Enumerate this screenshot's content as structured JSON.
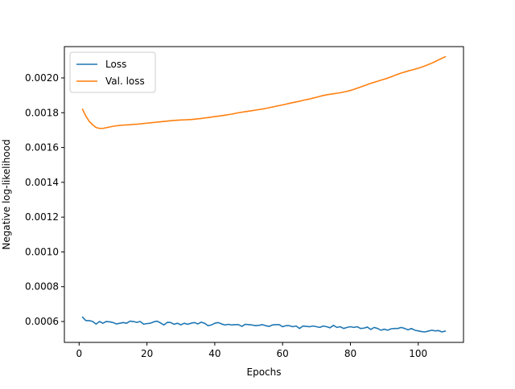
{
  "chart_data": {
    "type": "line",
    "title": "",
    "xlabel": "Epochs",
    "ylabel": "Negative log-likelihood",
    "xlim": [
      -4.35,
      113.35
    ],
    "ylim": [
      0.00048,
      0.00218
    ],
    "xticks": [
      0,
      20,
      40,
      60,
      80,
      100
    ],
    "yticks": [
      0.0006,
      0.0008,
      0.001,
      0.0012,
      0.0014,
      0.0016,
      0.0018,
      0.002
    ],
    "ytick_labels": [
      "0.0006",
      "0.0008",
      "0.0010",
      "0.0012",
      "0.0014",
      "0.0016",
      "0.0018",
      "0.0020"
    ],
    "grid": false,
    "legend_position": "upper-left",
    "series": [
      {
        "name": "Loss",
        "color": "#1f77b4",
        "x": [
          1,
          2,
          3,
          4,
          5,
          6,
          7,
          8,
          9,
          10,
          11,
          12,
          13,
          14,
          15,
          16,
          17,
          18,
          19,
          20,
          21,
          22,
          23,
          24,
          25,
          26,
          27,
          28,
          29,
          30,
          31,
          32,
          33,
          34,
          35,
          36,
          37,
          38,
          39,
          40,
          41,
          42,
          43,
          44,
          45,
          46,
          47,
          48,
          49,
          50,
          51,
          52,
          53,
          54,
          55,
          56,
          57,
          58,
          59,
          60,
          61,
          62,
          63,
          64,
          65,
          66,
          67,
          68,
          69,
          70,
          71,
          72,
          73,
          74,
          75,
          76,
          77,
          78,
          79,
          80,
          81,
          82,
          83,
          84,
          85,
          86,
          87,
          88,
          89,
          90,
          91,
          92,
          93,
          94,
          95,
          96,
          97,
          98,
          99,
          100,
          101,
          102,
          103,
          104,
          105,
          106,
          107,
          108
        ],
        "y": [
          0.000625,
          0.000605,
          0.000605,
          0.0006,
          0.000585,
          0.0006,
          0.00059,
          0.0006,
          0.000598,
          0.000594,
          0.000586,
          0.00059,
          0.000594,
          0.00059,
          0.000602,
          0.0006,
          0.000595,
          0.0006,
          0.000585,
          0.000588,
          0.00059,
          0.000598,
          0.000602,
          0.000592,
          0.00058,
          0.000595,
          0.000594,
          0.000584,
          0.00059,
          0.000581,
          0.00059,
          0.000584,
          0.00059,
          0.000594,
          0.000586,
          0.000596,
          0.00059,
          0.000576,
          0.00058,
          0.00059,
          0.000594,
          0.000586,
          0.00058,
          0.000584,
          0.00058,
          0.000582,
          0.000582,
          0.000572,
          0.000584,
          0.000582,
          0.00058,
          0.000576,
          0.000578,
          0.000582,
          0.000576,
          0.000572,
          0.00058,
          0.000582,
          0.000582,
          0.00057,
          0.000576,
          0.000576,
          0.00057,
          0.000574,
          0.00056,
          0.000574,
          0.000572,
          0.00057,
          0.000574,
          0.00057,
          0.000566,
          0.000574,
          0.00057,
          0.000564,
          0.000578,
          0.000566,
          0.00057,
          0.00056,
          0.000566,
          0.00057,
          0.000566,
          0.00057,
          0.00056,
          0.000562,
          0.000568,
          0.000554,
          0.000566,
          0.00056,
          0.00055,
          0.000556,
          0.00055,
          0.000558,
          0.00056,
          0.00056,
          0.000566,
          0.00056,
          0.000552,
          0.00056,
          0.00055,
          0.000546,
          0.000542,
          0.00054,
          0.000545,
          0.00055,
          0.000546,
          0.000548,
          0.00054,
          0.000545
        ]
      },
      {
        "name": "Val. loss",
        "color": "#ff7f0e",
        "x": [
          1,
          2,
          3,
          4,
          5,
          6,
          7,
          8,
          9,
          10,
          11,
          12,
          13,
          14,
          15,
          16,
          17,
          18,
          19,
          20,
          21,
          22,
          23,
          24,
          25,
          26,
          27,
          28,
          29,
          30,
          31,
          32,
          33,
          34,
          35,
          36,
          37,
          38,
          39,
          40,
          41,
          42,
          43,
          44,
          45,
          46,
          47,
          48,
          49,
          50,
          51,
          52,
          53,
          54,
          55,
          56,
          57,
          58,
          59,
          60,
          61,
          62,
          63,
          64,
          65,
          66,
          67,
          68,
          69,
          70,
          71,
          72,
          73,
          74,
          75,
          76,
          77,
          78,
          79,
          80,
          81,
          82,
          83,
          84,
          85,
          86,
          87,
          88,
          89,
          90,
          91,
          92,
          93,
          94,
          95,
          96,
          97,
          98,
          99,
          100,
          101,
          102,
          103,
          104,
          105,
          106,
          107,
          108
        ],
        "y": [
          0.00182,
          0.00178,
          0.00175,
          0.00173,
          0.001715,
          0.00171,
          0.00171,
          0.001714,
          0.001718,
          0.001722,
          0.001725,
          0.001727,
          0.001729,
          0.00173,
          0.001731,
          0.001733,
          0.001734,
          0.001736,
          0.001738,
          0.00174,
          0.001742,
          0.001744,
          0.001746,
          0.001748,
          0.00175,
          0.001752,
          0.001754,
          0.001756,
          0.001757,
          0.001758,
          0.001759,
          0.00176,
          0.001761,
          0.001763,
          0.001765,
          0.001767,
          0.00177,
          0.001772,
          0.001775,
          0.001778,
          0.00178,
          0.001783,
          0.001786,
          0.001789,
          0.001792,
          0.001796,
          0.0018,
          0.001803,
          0.001806,
          0.001809,
          0.001812,
          0.001815,
          0.001818,
          0.001821,
          0.001825,
          0.001829,
          0.001833,
          0.001837,
          0.001841,
          0.001845,
          0.001849,
          0.001854,
          0.001858,
          0.001862,
          0.001866,
          0.001871,
          0.001875,
          0.001879,
          0.001884,
          0.001889,
          0.001894,
          0.001899,
          0.001903,
          0.001906,
          0.001909,
          0.001912,
          0.001915,
          0.001919,
          0.001923,
          0.001928,
          0.001934,
          0.001941,
          0.001948,
          0.001955,
          0.001962,
          0.001969,
          0.001975,
          0.001981,
          0.001987,
          0.001993,
          0.001999,
          0.002006,
          0.002014,
          0.002021,
          0.002028,
          0.002034,
          0.00204,
          0.002045,
          0.00205,
          0.002056,
          0.002062,
          0.002069,
          0.002077,
          0.002085,
          0.002094,
          0.002104,
          0.002113,
          0.002122
        ]
      }
    ]
  }
}
